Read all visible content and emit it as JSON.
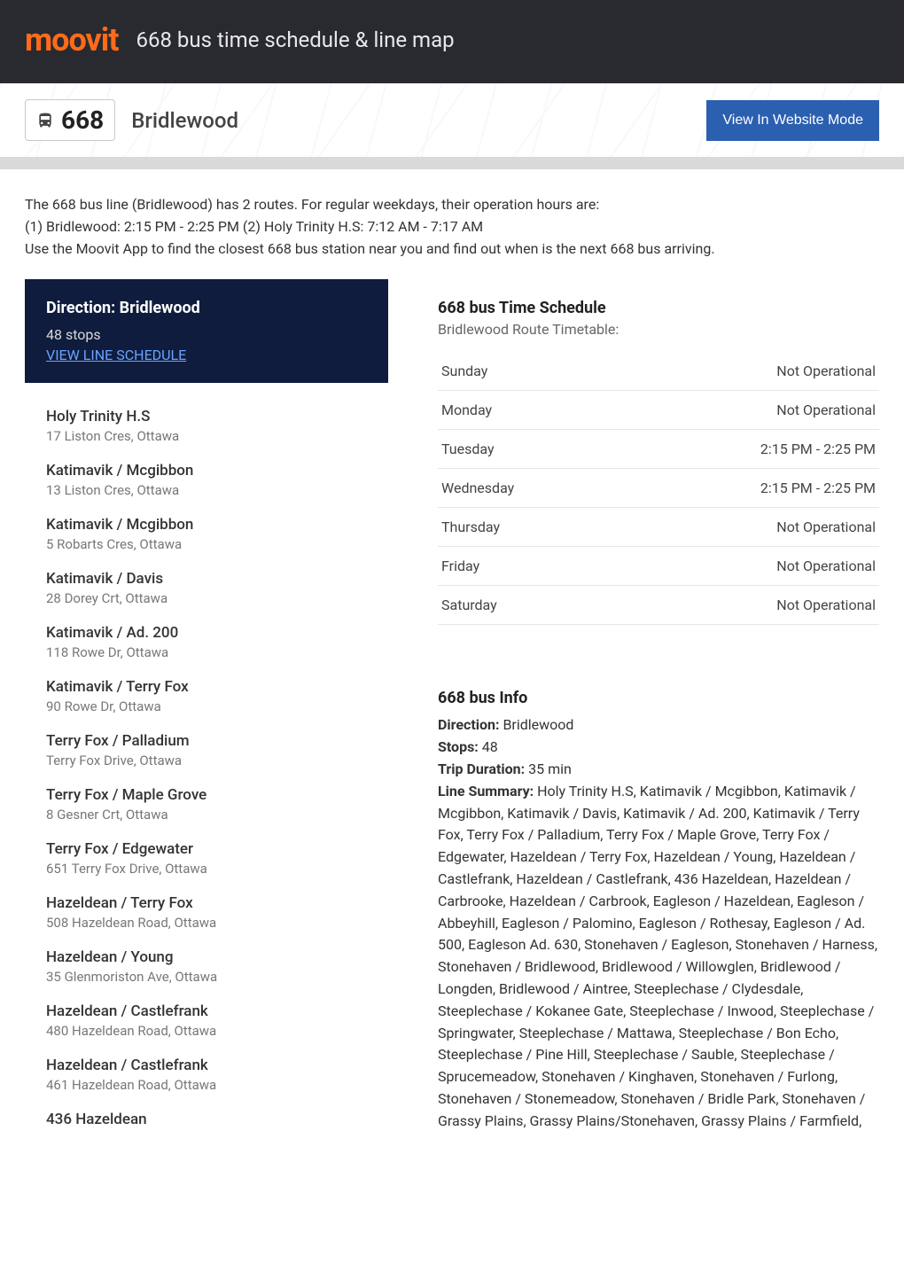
{
  "brand": "moovit",
  "header_title": "668 bus time schedule & line map",
  "route_number": "668",
  "route_name": "Bridlewood",
  "website_btn": "View In Website Mode",
  "intro_lines": [
    "The 668 bus line (Bridlewood) has 2 routes. For regular weekdays, their operation hours are:",
    "(1) Bridlewood: 2:15 PM - 2:25 PM (2) Holy Trinity H.S: 7:12 AM - 7:17 AM",
    "Use the Moovit App to find the closest 668 bus station near you and find out when is the next 668 bus arriving."
  ],
  "direction": {
    "label": "Direction: Bridlewood",
    "stops_count": "48 stops",
    "view_schedule": "VIEW LINE SCHEDULE"
  },
  "stops": [
    {
      "name": "Holy Trinity H.S",
      "addr": "17 Liston Cres, Ottawa"
    },
    {
      "name": "Katimavik / Mcgibbon",
      "addr": "13 Liston Cres, Ottawa"
    },
    {
      "name": "Katimavik / Mcgibbon",
      "addr": "5 Robarts Cres, Ottawa"
    },
    {
      "name": "Katimavik / Davis",
      "addr": "28 Dorey Crt, Ottawa"
    },
    {
      "name": "Katimavik / Ad. 200",
      "addr": "118 Rowe Dr, Ottawa"
    },
    {
      "name": "Katimavik / Terry Fox",
      "addr": "90 Rowe Dr, Ottawa"
    },
    {
      "name": "Terry Fox / Palladium",
      "addr": "Terry Fox Drive, Ottawa"
    },
    {
      "name": "Terry Fox / Maple Grove",
      "addr": "8 Gesner Crt, Ottawa"
    },
    {
      "name": "Terry Fox / Edgewater",
      "addr": "651 Terry Fox Drive, Ottawa"
    },
    {
      "name": "Hazeldean / Terry Fox",
      "addr": "508 Hazeldean Road, Ottawa"
    },
    {
      "name": "Hazeldean / Young",
      "addr": "35 Glenmoriston Ave, Ottawa"
    },
    {
      "name": "Hazeldean / Castlefrank",
      "addr": "480 Hazeldean Road, Ottawa"
    },
    {
      "name": "Hazeldean / Castlefrank",
      "addr": "461 Hazeldean Road, Ottawa"
    },
    {
      "name": "436 Hazeldean",
      "addr": ""
    }
  ],
  "timetable": {
    "title": "668 bus Time Schedule",
    "subtitle": "Bridlewood Route Timetable:",
    "rows": [
      {
        "day": "Sunday",
        "time": "Not Operational"
      },
      {
        "day": "Monday",
        "time": "Not Operational"
      },
      {
        "day": "Tuesday",
        "time": "2:15 PM - 2:25 PM"
      },
      {
        "day": "Wednesday",
        "time": "2:15 PM - 2:25 PM"
      },
      {
        "day": "Thursday",
        "time": "Not Operational"
      },
      {
        "day": "Friday",
        "time": "Not Operational"
      },
      {
        "day": "Saturday",
        "time": "Not Operational"
      }
    ]
  },
  "info": {
    "title": "668 bus Info",
    "direction_label": "Direction:",
    "direction_value": " Bridlewood",
    "stops_label": "Stops:",
    "stops_value": " 48",
    "duration_label": "Trip Duration:",
    "duration_value": " 35 min",
    "summary_label": "Line Summary:",
    "summary_value": " Holy Trinity H.S, Katimavik / Mcgibbon, Katimavik / Mcgibbon, Katimavik / Davis, Katimavik / Ad. 200, Katimavik / Terry Fox, Terry Fox / Palladium, Terry Fox / Maple Grove, Terry Fox / Edgewater, Hazeldean / Terry Fox, Hazeldean / Young, Hazeldean / Castlefrank, Hazeldean / Castlefrank, 436 Hazeldean, Hazeldean / Carbrooke, Hazeldean / Carbrook, Eagleson / Hazeldean, Eagleson / Abbeyhill, Eagleson / Palomino, Eagleson / Rothesay, Eagleson / Ad. 500, Eagleson Ad. 630, Stonehaven / Eagleson, Stonehaven / Harness, Stonehaven / Bridlewood, Bridlewood / Willowglen, Bridlewood / Longden, Bridlewood / Aintree, Steeplechase / Clydesdale, Steeplechase / Kokanee Gate, Steeplechase / Inwood, Steeplechase / Springwater, Steeplechase / Mattawa, Steeplechase / Bon Echo, Steeplechase / Pine Hill, Steeplechase / Sauble, Steeplechase / Sprucemeadow, Stonehaven / Kinghaven, Stonehaven / Furlong, Stonehaven / Stonemeadow, Stonehaven / Bridle Park, Stonehaven / Grassy Plains, Grassy Plains/Stonehaven, Grassy Plains / Farmfield,"
  },
  "colors": {
    "header_bg": "#292a30",
    "logo": "#ff6b1a",
    "btn_bg": "#2b5fb0",
    "direction_bg": "#0f1c3d",
    "link": "#6aa3ff"
  }
}
